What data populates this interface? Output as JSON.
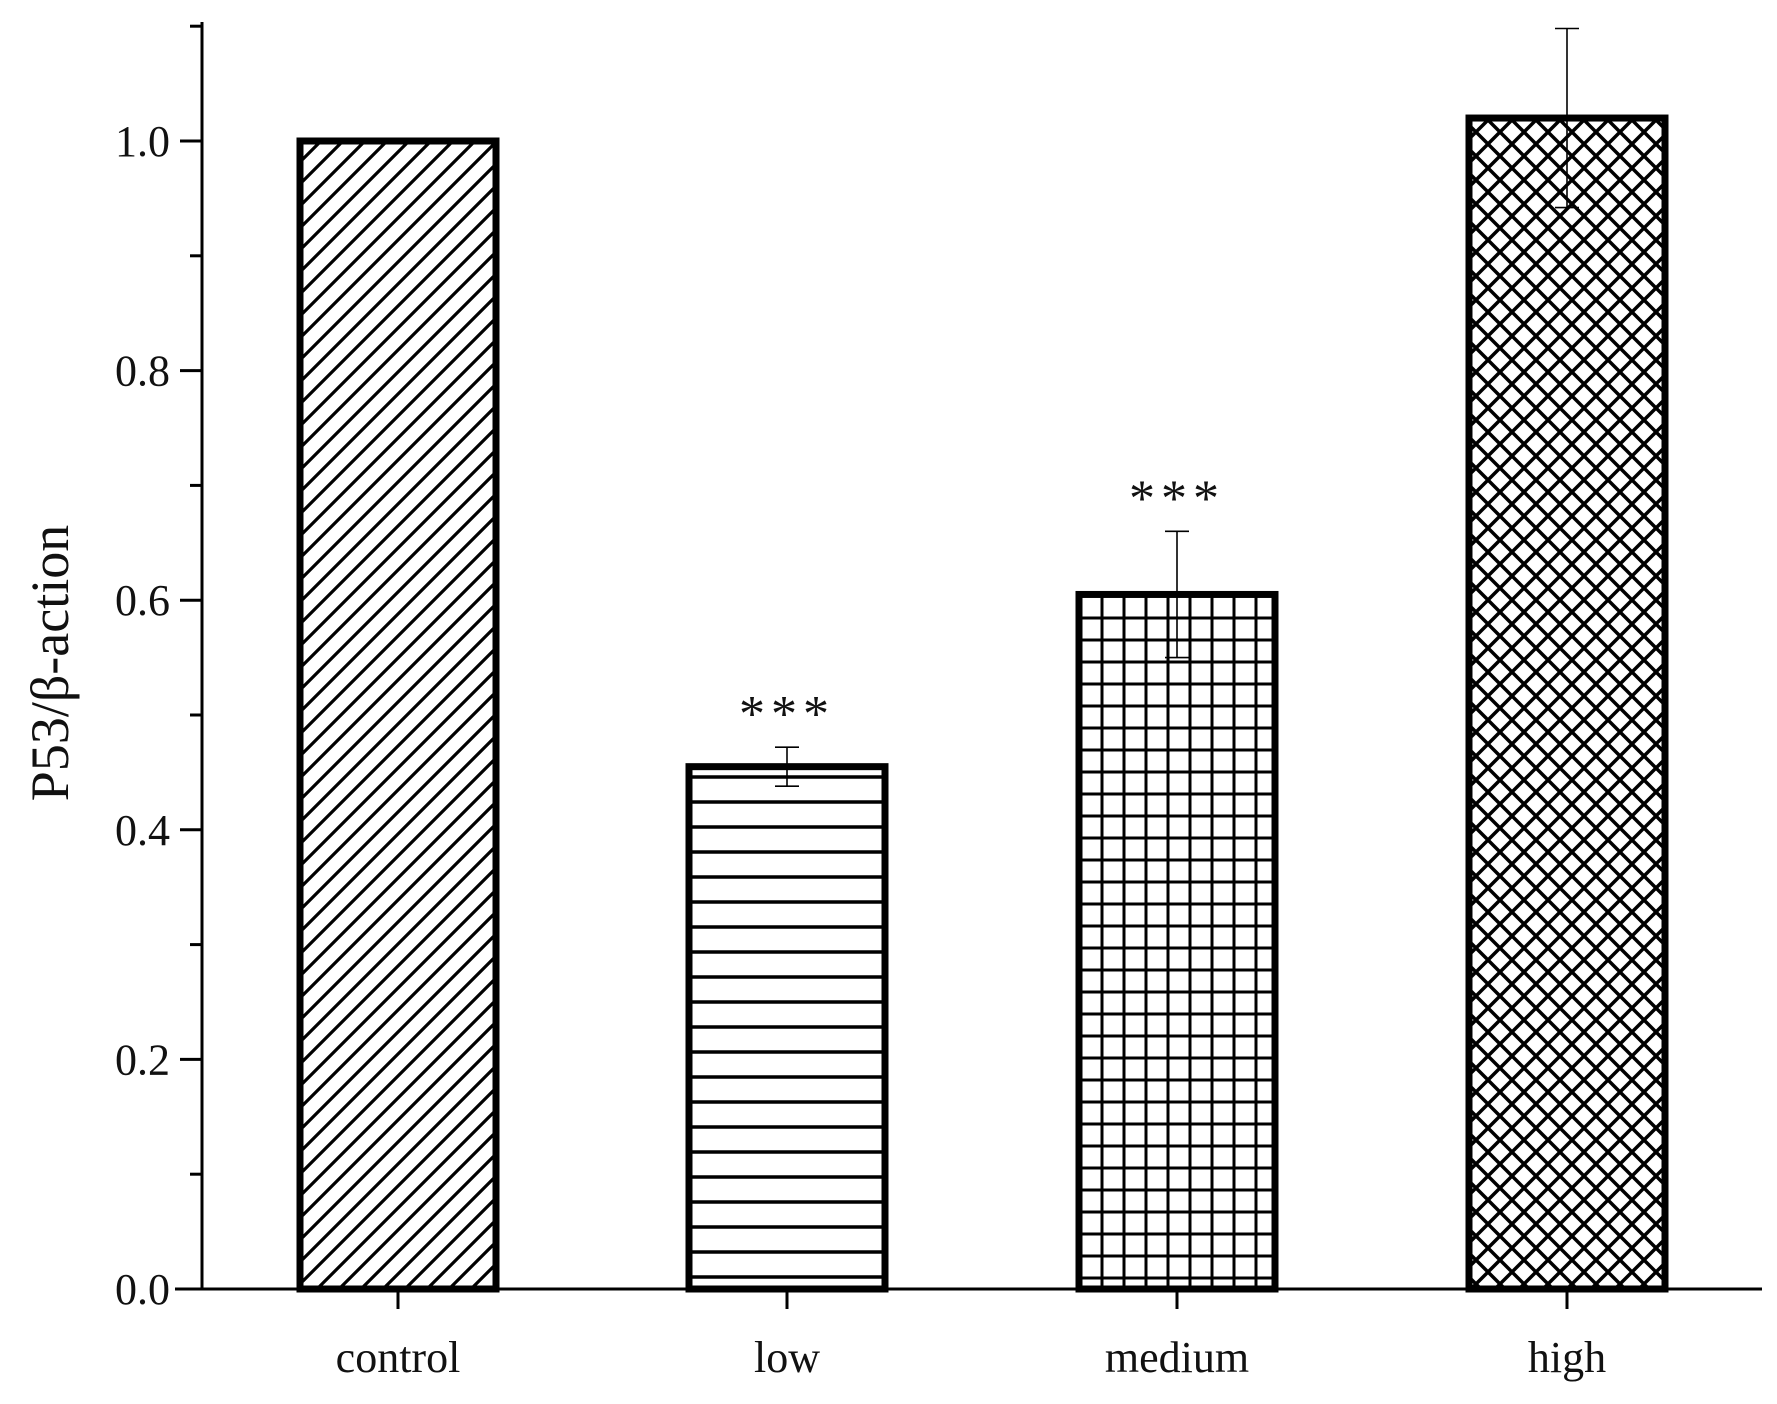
{
  "chart_data": {
    "type": "bar",
    "categories": [
      "control",
      "low",
      "medium",
      "high"
    ],
    "values": [
      1.0,
      0.455,
      0.605,
      1.02
    ],
    "errors": [
      0,
      0.017,
      0.055,
      0.078
    ],
    "significance": [
      "",
      "***",
      "***",
      ""
    ],
    "patterns": [
      "diagonal",
      "horizontal",
      "grid",
      "crosshatch"
    ],
    "ylabel": "P53/β-action",
    "xlabel": "",
    "title": "",
    "ylim": [
      0,
      1.1
    ],
    "yticks": [
      {
        "value": 0.0,
        "label": "0.0"
      },
      {
        "value": 0.2,
        "label": "0.2"
      },
      {
        "value": 0.4,
        "label": "0.4"
      },
      {
        "value": 0.6,
        "label": "0.6"
      },
      {
        "value": 0.8,
        "label": "0.8"
      },
      {
        "value": 1.0,
        "label": "1.0"
      }
    ],
    "minor_tick_step": 0.1,
    "grid": false,
    "colors": {
      "bar_stroke": "#000000",
      "bar_fill": "#ffffff",
      "axis": "#000000"
    }
  }
}
